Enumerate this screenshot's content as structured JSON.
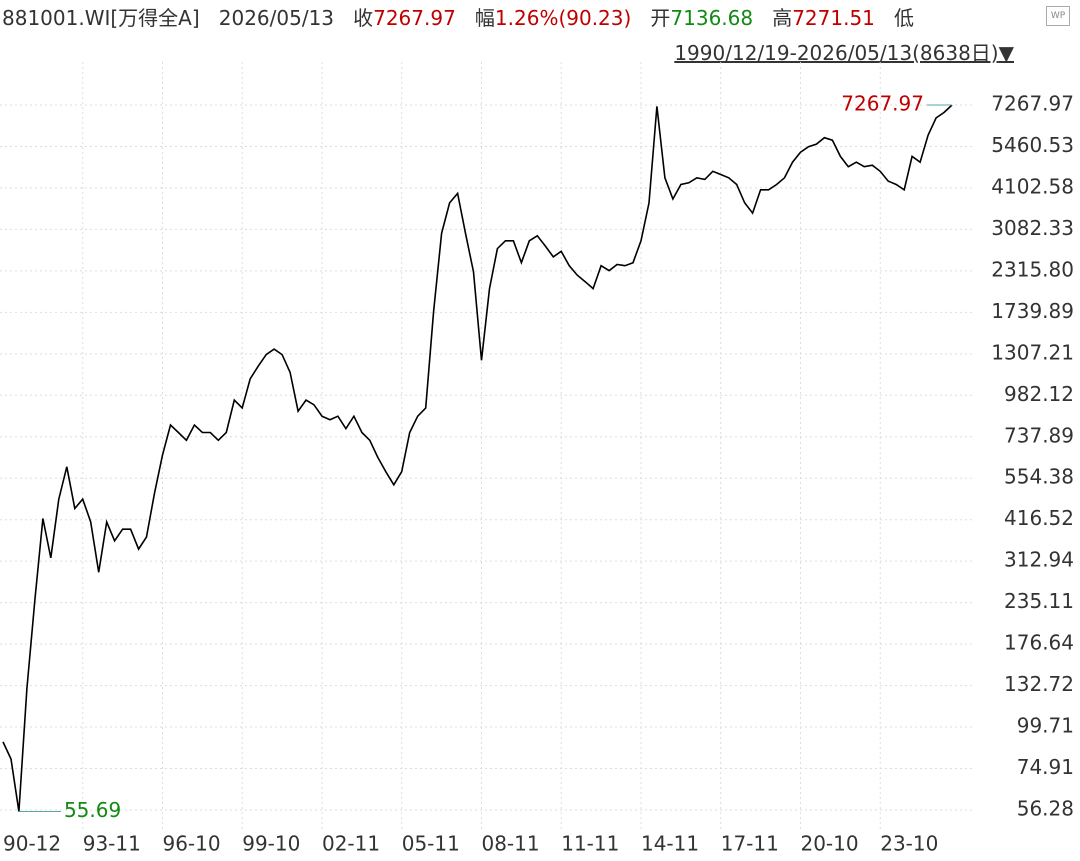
{
  "header": {
    "code": "881001.WI[万得全A]",
    "date": "2026/05/13",
    "close_label": "收",
    "close": "7267.97",
    "change_label": "幅",
    "change": "1.26%(90.23)",
    "open_label": "开",
    "open": "7136.68",
    "high_label": "高",
    "high": "7271.51",
    "low_label": "低",
    "range": "1990/12/19-2026/05/13(8638日)"
  },
  "chart_data": {
    "type": "line",
    "log_scale": true,
    "grid": true,
    "color": "#000000",
    "categories": [
      "90-12",
      null,
      null,
      null,
      null,
      null,
      null,
      null,
      null,
      null,
      "93-11",
      null,
      null,
      null,
      null,
      null,
      null,
      null,
      null,
      null,
      "96-10",
      null,
      null,
      null,
      null,
      null,
      null,
      null,
      null,
      null,
      "99-10",
      null,
      null,
      null,
      null,
      null,
      null,
      null,
      null,
      null,
      "02-11",
      null,
      null,
      null,
      null,
      null,
      null,
      null,
      null,
      null,
      "05-11",
      null,
      null,
      null,
      null,
      null,
      null,
      null,
      null,
      null,
      "08-11",
      null,
      null,
      null,
      null,
      null,
      null,
      null,
      null,
      null,
      "11-11",
      null,
      null,
      null,
      null,
      null,
      null,
      null,
      null,
      null,
      "14-11",
      null,
      null,
      null,
      null,
      null,
      null,
      null,
      null,
      null,
      "17-11",
      null,
      null,
      null,
      null,
      null,
      null,
      null,
      null,
      null,
      "20-10",
      null,
      null,
      null,
      null,
      null,
      null,
      null,
      null,
      null,
      "23-10",
      null,
      null,
      null,
      null,
      null,
      null,
      null,
      null,
      null
    ],
    "values": [
      90,
      80,
      55.69,
      130,
      240,
      420,
      320,
      480,
      600,
      450,
      480,
      410,
      290,
      410,
      360,
      390,
      390,
      340,
      370,
      500,
      650,
      800,
      760,
      720,
      800,
      760,
      760,
      720,
      760,
      950,
      900,
      1100,
      1200,
      1300,
      1350,
      1300,
      1150,
      880,
      950,
      920,
      850,
      830,
      850,
      780,
      850,
      760,
      720,
      640,
      580,
      530,
      580,
      760,
      850,
      900,
      1750,
      3000,
      3700,
      3950,
      3000,
      2300,
      1250,
      2050,
      2700,
      2850,
      2850,
      2450,
      2850,
      2950,
      2750,
      2550,
      2650,
      2400,
      2250,
      2150,
      2050,
      2400,
      2320,
      2420,
      2400,
      2450,
      2850,
      3700,
      7200,
      4400,
      3800,
      4200,
      4250,
      4400,
      4350,
      4600,
      4500,
      4400,
      4200,
      3700,
      3450,
      4050,
      4050,
      4200,
      4400,
      4900,
      5250,
      5450,
      5550,
      5800,
      5700,
      5100,
      4750,
      4900,
      4750,
      4800,
      4600,
      4300,
      4200,
      4050,
      5100,
      4900,
      5900,
      6650,
      6900,
      7267.97
    ],
    "ylim": [
      49.03,
      9776
    ],
    "yticks": [
      56.28,
      74.91,
      99.71,
      132.72,
      176.64,
      235.11,
      312.94,
      416.52,
      554.38,
      737.89,
      982.12,
      1307.21,
      1739.89,
      {
        "value": 2315.8,
        "label": "2315.80"
      },
      3082.33,
      4102.58,
      5460.53,
      7267.97
    ]
  }
}
